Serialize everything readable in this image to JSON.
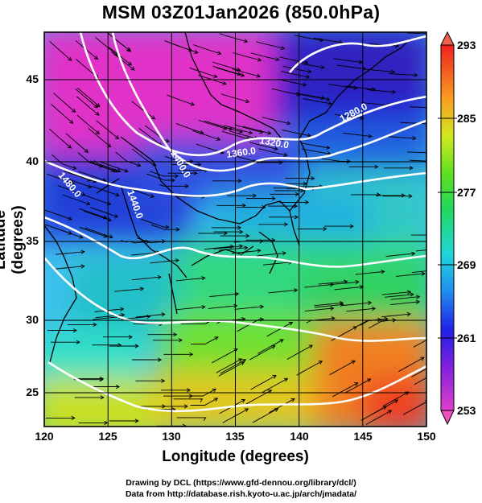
{
  "title": "MSM 03Z01Jan2026 (850.0hPa)",
  "axes": {
    "xlabel": "Longitude (degrees)",
    "ylabel": "Latitude  (degrees)",
    "xticks": [
      "120",
      "125",
      "130",
      "135",
      "140",
      "145",
      "150"
    ],
    "yticks": [
      "25",
      "30",
      "35",
      "40",
      "45"
    ]
  },
  "colorbar": {
    "ticks": [
      "293",
      "285",
      "277",
      "269",
      "261",
      "253"
    ]
  },
  "contour_labels": [
    "1280.0",
    "1320.0",
    "1360.0",
    "1400.0",
    "1440.0",
    "1480.0"
  ],
  "credits": {
    "line1": "Drawing by DCL (https://www.gfd-dennou.org/library/dcl/)",
    "line2": "Data from http://database.rish.kyoto-u.ac.jp/arch/jmadata/"
  },
  "chart_data": {
    "type": "heatmap",
    "title": "MSM 03Z01Jan2026 (850.0hPa)",
    "xlabel": "Longitude (degrees)",
    "ylabel": "Latitude  (degrees)",
    "xlim": [
      120,
      150
    ],
    "ylim": [
      22.4,
      47.6
    ],
    "color_range": [
      253,
      293
    ],
    "colorbar_ticks": [
      253,
      261,
      269,
      277,
      285,
      293
    ],
    "grid": true,
    "overlays": [
      "streamlines",
      "geopotential height contours (white)",
      "coastlines"
    ],
    "contour_levels": [
      1280,
      1320,
      1360,
      1400,
      1440,
      1480
    ]
  }
}
